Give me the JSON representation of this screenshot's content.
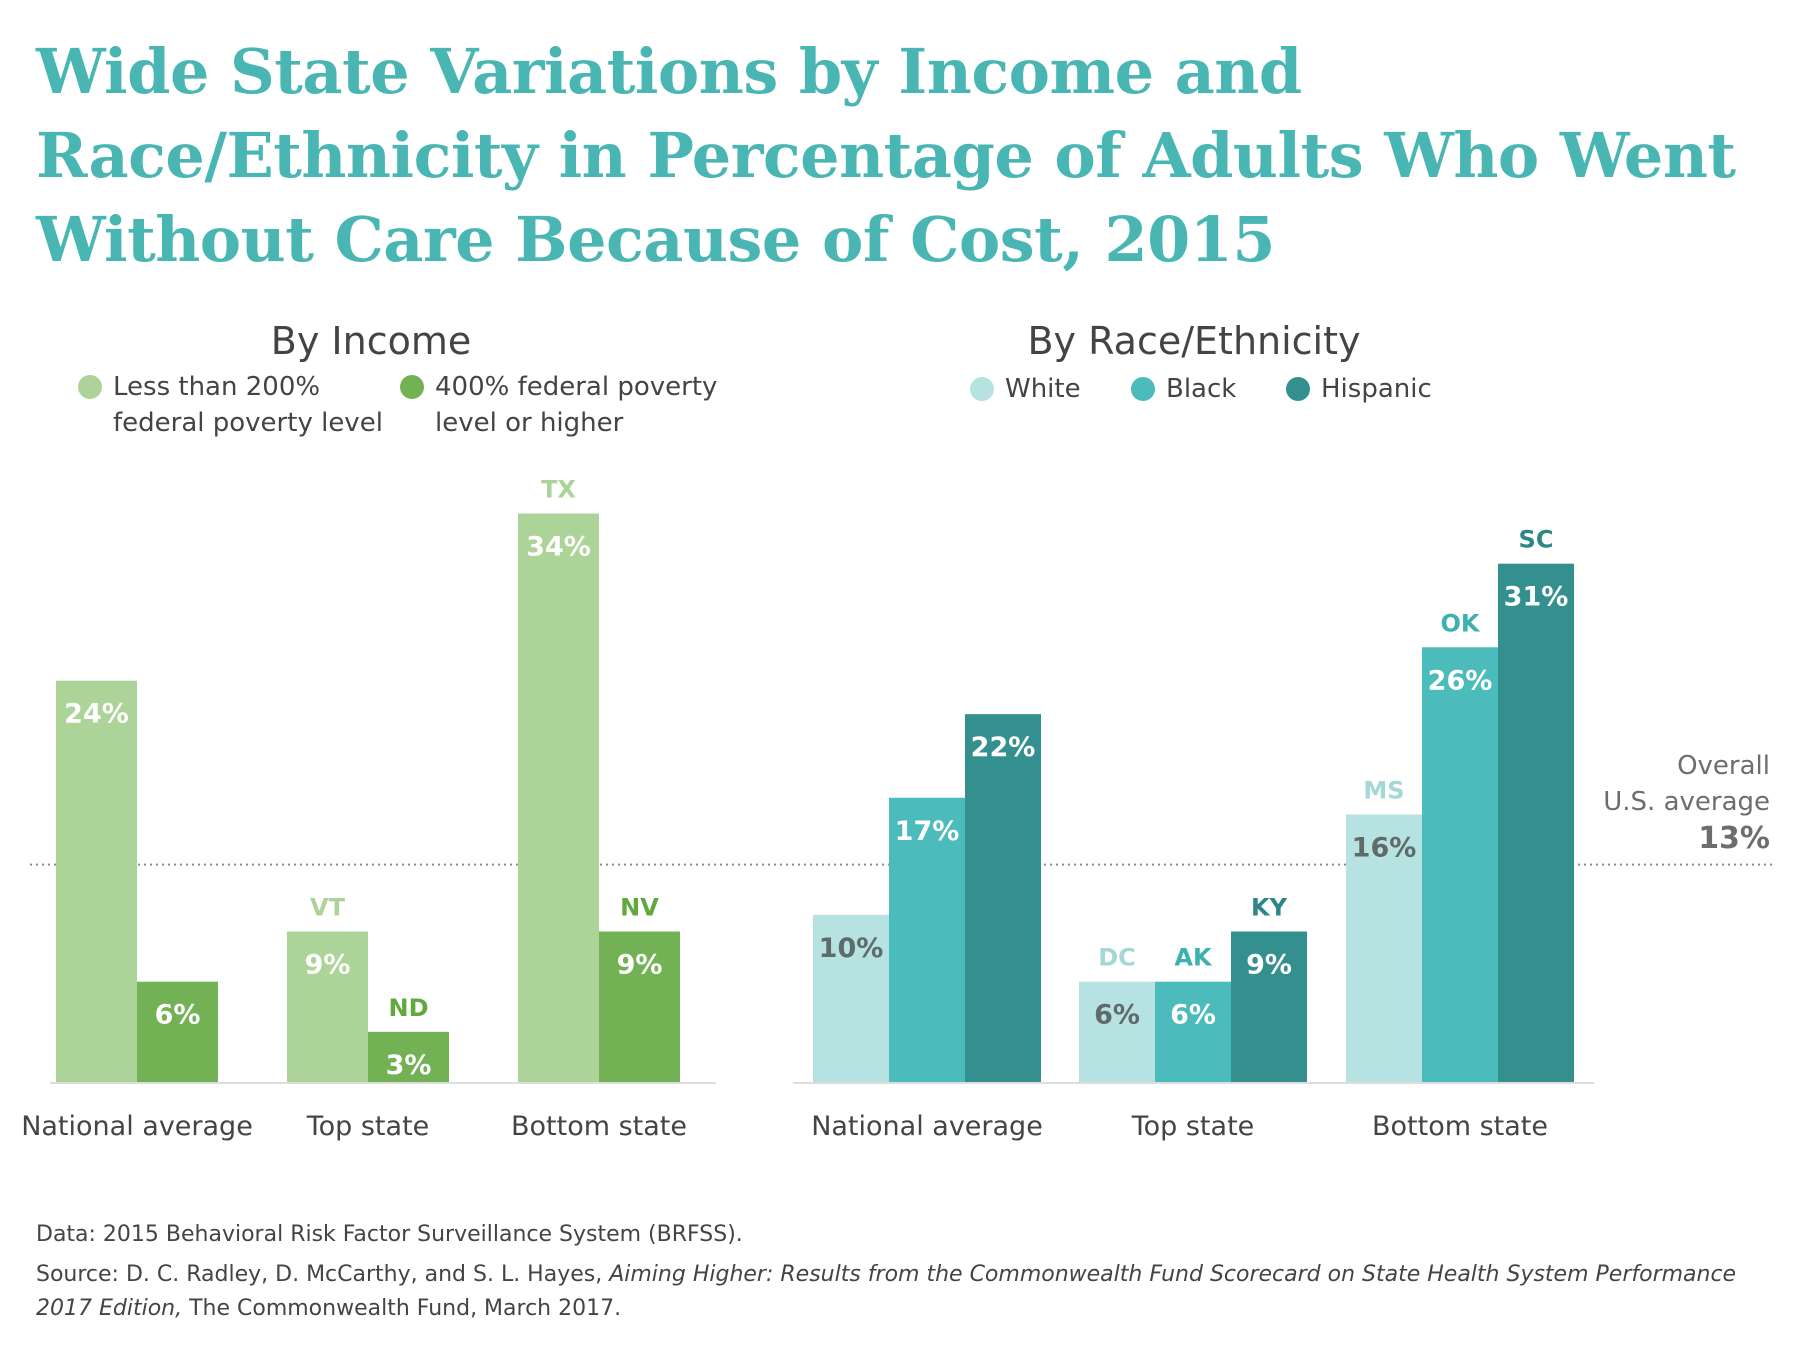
{
  "title": "Wide State Variations by Income and Race/Ethnicity in Percentage of Adults Who Went Without Care Because of Cost, 2015",
  "chart_data": [
    {
      "type": "bar",
      "subtitle": "By Income",
      "categories": [
        "National average",
        "Top state",
        "Bottom state"
      ],
      "ylim": [
        0,
        40
      ],
      "series": [
        {
          "name": "Less than 200% federal poverty level",
          "legend_lines": [
            "Less than 200%",
            "federal poverty level"
          ],
          "color": "#acd398",
          "label_color": "#acd398",
          "values": [
            24,
            9,
            34
          ],
          "labels": [
            "24%",
            "9%",
            "34%"
          ],
          "states": [
            "",
            "VT",
            "TX"
          ]
        },
        {
          "name": "400% federal poverty level or higher",
          "legend_lines": [
            "400% federal poverty",
            "level or higher"
          ],
          "color": "#72b254",
          "label_color": "#5fa93f",
          "values": [
            6,
            3,
            9
          ],
          "labels": [
            "6%",
            "3%",
            "9%"
          ],
          "states": [
            "",
            "ND",
            "NV"
          ]
        }
      ]
    },
    {
      "type": "bar",
      "subtitle": "By Race/Ethnicity",
      "categories": [
        "National average",
        "Top state",
        "Bottom state"
      ],
      "ylim": [
        0,
        40
      ],
      "series": [
        {
          "name": "White",
          "legend_lines": [
            "White"
          ],
          "color": "#b6e2e1",
          "label_color": "#a4d7d5",
          "values": [
            10,
            6,
            16
          ],
          "labels": [
            "10%",
            "6%",
            "16%"
          ],
          "states": [
            "",
            "DC",
            "MS"
          ]
        },
        {
          "name": "Black",
          "legend_lines": [
            "Black"
          ],
          "color": "#4cbbbb",
          "label_color": "#3cb1b0",
          "values": [
            17,
            6,
            26
          ],
          "labels": [
            "17%",
            "6%",
            "26%"
          ],
          "states": [
            "",
            "AK",
            "OK"
          ]
        },
        {
          "name": "Hispanic",
          "legend_lines": [
            "Hispanic"
          ],
          "color": "#33908f",
          "label_color": "#2e8786",
          "values": [
            22,
            9,
            31
          ],
          "labels": [
            "22%",
            "9%",
            "31%"
          ],
          "states": [
            "",
            "KY",
            "SC"
          ]
        }
      ]
    }
  ],
  "reference": {
    "value": 13,
    "lines": [
      "Overall",
      "U.S. average"
    ],
    "value_label": "13%"
  },
  "footnotes": {
    "data": "Data: 2015 Behavioral Risk Factor Surveillance System (BRFSS).",
    "source_prefix": "Source: D. C. Radley, D. McCarthy, and S. L. Hayes, ",
    "source_title": "Aiming Higher: Results from the Commonwealth Fund Scorecard on State Health System Performance 2017 Edition,",
    "source_suffix": " The Commonwealth Fund, March 2017."
  }
}
